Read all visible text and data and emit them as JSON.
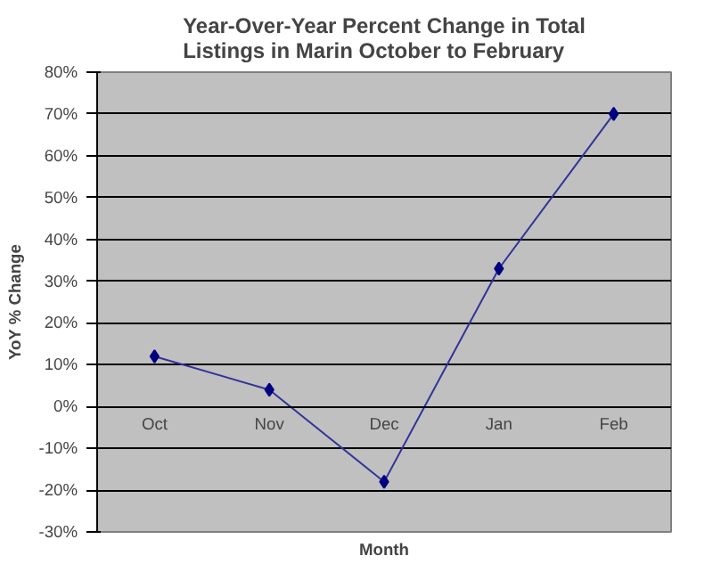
{
  "chart_data": {
    "type": "line",
    "title": "Year-Over-Year Percent Change in Total\nListings in Marin October to February",
    "xlabel": "Month",
    "ylabel": "YoY % Change",
    "categories": [
      "Oct",
      "Nov",
      "Dec",
      "Jan",
      "Feb"
    ],
    "series": [
      {
        "color": "#000080",
        "values": [
          12,
          4,
          -18,
          33,
          70
        ]
      }
    ],
    "ylim": [
      -30,
      80
    ],
    "yticks": [
      {
        "value": -30,
        "label": "-30%"
      },
      {
        "value": -20,
        "label": "-20%"
      },
      {
        "value": -10,
        "label": "-10%"
      },
      {
        "value": 0,
        "label": "0%"
      },
      {
        "value": 10,
        "label": "10%"
      },
      {
        "value": 20,
        "label": "20%"
      },
      {
        "value": 30,
        "label": "30%"
      },
      {
        "value": 40,
        "label": "40%"
      },
      {
        "value": 50,
        "label": "50%"
      },
      {
        "value": 60,
        "label": "60%"
      },
      {
        "value": 70,
        "label": "70%"
      },
      {
        "value": 80,
        "label": "80%"
      }
    ],
    "grid": "y",
    "marker": "diamond",
    "line_style": "solid"
  }
}
